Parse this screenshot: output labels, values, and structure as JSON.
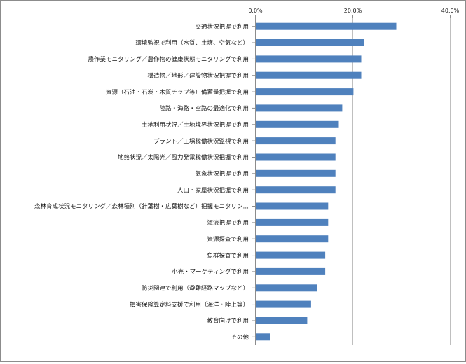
{
  "chart_data": {
    "type": "bar",
    "orientation": "horizontal",
    "title": "",
    "xlabel": "",
    "ylabel": "",
    "xlim": [
      0,
      40
    ],
    "ticks": [
      0,
      20,
      40
    ],
    "tick_labels": [
      "0.0%",
      "20.0%",
      "40.0%"
    ],
    "tick_position": "top",
    "grid": true,
    "legend": "none",
    "bar_color": "#4f81bd",
    "categories": [
      "交通状況把握で利用",
      "環境監視で利用（水質、土壌、空気など）",
      "農作業モニタリング／農作物の健康状態モニタリングで利用",
      "構造物／地形／建設物状況把握で利用",
      "資源（石油・石炭・木質チップ等）備蓄量把握で利用",
      "陸路・海路・空路の最適化で利用",
      "土地利用状況／土地境界状況把握で利用",
      "プラント／工場稼働状況監視で利用",
      "地熱状況／太陽光／風力発電稼働状況把握で利用",
      "気象状況把握で利用",
      "人口・家屋状況把握で利用",
      "森林育成状況モニタリング／森林種別（針葉樹・広葉樹など）把握モニタリン…",
      "海流把握で利用",
      "資源探査で利用",
      "魚群探査で利用",
      "小売・マーケティングで利用",
      "防災関連で利用（避難経路マップなど）",
      "損害保険算定料支援で利用（海洋・陸上等）",
      "教育向けで利用",
      "その他"
    ],
    "values": [
      29.0,
      22.4,
      21.8,
      21.8,
      20.2,
      17.9,
      17.2,
      16.5,
      16.5,
      16.5,
      16.5,
      15.0,
      15.0,
      15.0,
      14.4,
      14.4,
      12.8,
      11.5,
      10.7,
      3.1
    ]
  }
}
